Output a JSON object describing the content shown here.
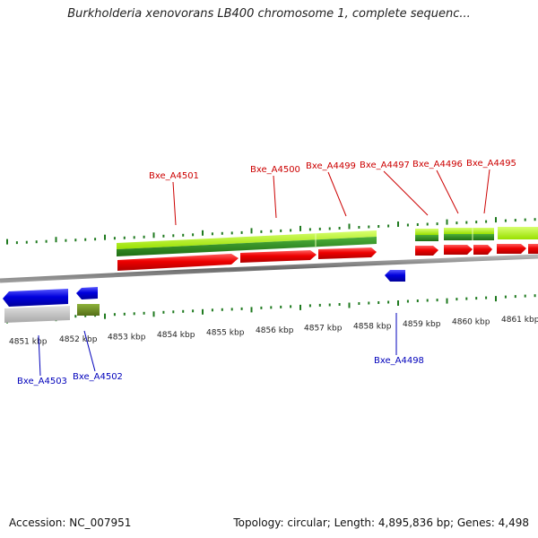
{
  "header": {
    "title": "Burkholderia xenovorans LB400 chromosome 1, complete sequenc..."
  },
  "footer": {
    "accession": "Accession: NC_007951",
    "summary": "Topology: circular; Length: 4,895,836 bp; Genes: 4,498"
  },
  "scale": {
    "labels": [
      "4851 kbp",
      "4852 kbp",
      "4853 kbp",
      "4854 kbp",
      "4855 kbp",
      "4856 kbp",
      "4857 kbp",
      "4858 kbp",
      "4859 kbp",
      "4860 kbp",
      "4861 kbp"
    ]
  },
  "genes": {
    "forward": [
      "Bxe_A4501",
      "Bxe_A4500",
      "Bxe_A4499",
      "Bxe_A4497",
      "Bxe_A4496",
      "Bxe_A4495"
    ],
    "reverse": [
      "Bxe_A4503",
      "Bxe_A4502",
      "Bxe_A4498"
    ]
  },
  "colors": {
    "forward_label": "#cc0000",
    "reverse_label": "#0000bb",
    "cds_forward": "#ee0000",
    "cds_reverse": "#0000dd",
    "gene_light": "#aaf000",
    "gene_dark": "#2e8a1e",
    "gene_olive": "#6b8e23",
    "gene_grey": "#bbbbbb",
    "backbone": "#777777",
    "tick": "#1f7a1f"
  }
}
